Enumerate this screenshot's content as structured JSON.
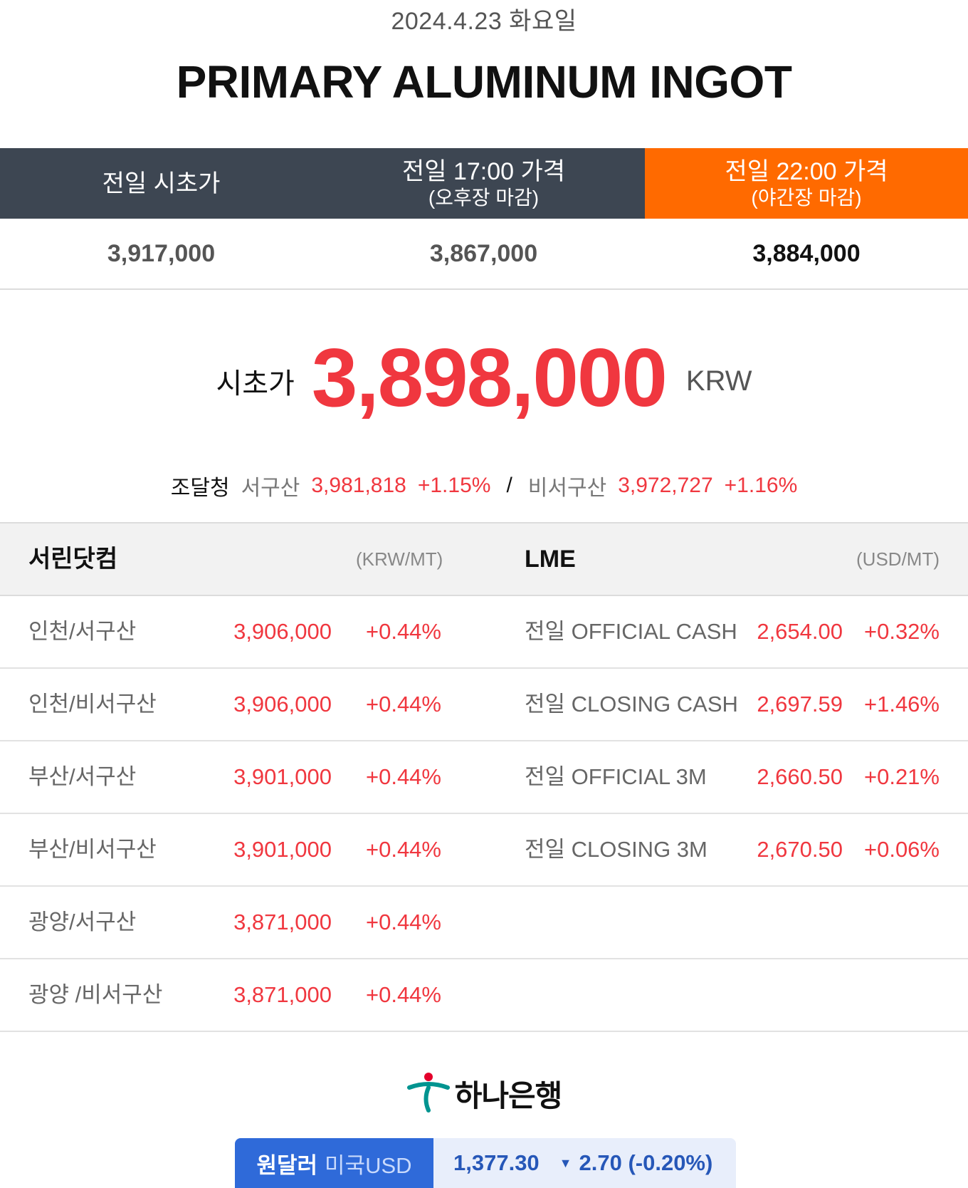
{
  "date": "2024.4.23 화요일",
  "title": "PRIMARY ALUMINUM INGOT",
  "header": {
    "col1": {
      "main": "전일 시초가"
    },
    "col2": {
      "main": "전일 17:00 가격",
      "sub": "(오후장 마감)"
    },
    "col3": {
      "main": "전일 22:00 가격",
      "sub": "(야간장 마감)"
    },
    "accent_color": "#ff6a00",
    "dark_color": "#3d4652"
  },
  "prev_prices": {
    "open": "3,917,000",
    "close_17": "3,867,000",
    "close_22": "3,884,000"
  },
  "main_price": {
    "label": "시초가",
    "value": "3,898,000",
    "unit": "KRW",
    "color": "#f0373f"
  },
  "pps": {
    "label": "조달청",
    "western": {
      "label": "서구산",
      "price": "3,981,818",
      "change": "+1.15%"
    },
    "separator": "/",
    "non_western": {
      "label": "비서구산",
      "price": "3,972,727",
      "change": "+1.16%"
    }
  },
  "table": {
    "left_title": "서린닷컴",
    "left_unit": "(KRW/MT)",
    "right_title": "LME",
    "right_unit": "(USD/MT)",
    "left_rows": [
      {
        "name": "인천/서구산",
        "price": "3,906,000",
        "change": "+0.44%"
      },
      {
        "name": "인천/비서구산",
        "price": "3,906,000",
        "change": "+0.44%"
      },
      {
        "name": "부산/서구산",
        "price": "3,901,000",
        "change": "+0.44%"
      },
      {
        "name": "부산/비서구산",
        "price": "3,901,000",
        "change": "+0.44%"
      },
      {
        "name": "광양/서구산",
        "price": "3,871,000",
        "change": "+0.44%"
      },
      {
        "name": "광양 /비서구산",
        "price": "3,871,000",
        "change": "+0.44%"
      }
    ],
    "right_rows": [
      {
        "name": "전일 OFFICIAL CASH",
        "price": "2,654.00",
        "change": "+0.32%"
      },
      {
        "name": "전일 CLOSING CASH",
        "price": "2,697.59",
        "change": "+1.46%"
      },
      {
        "name": "전일 OFFICIAL 3M",
        "price": "2,660.50",
        "change": "+0.21%"
      },
      {
        "name": "전일 CLOSING 3M",
        "price": "2,670.50",
        "change": "+0.06%"
      }
    ]
  },
  "bank": {
    "name": "하나은행",
    "logo_icon": "hana-bank-logo-icon"
  },
  "fx": {
    "pair": "원달러",
    "currency": "미국USD",
    "rate": "1,377.30",
    "direction_icon": "triangle-down-icon",
    "change": "2.70 (-0.20%)"
  }
}
